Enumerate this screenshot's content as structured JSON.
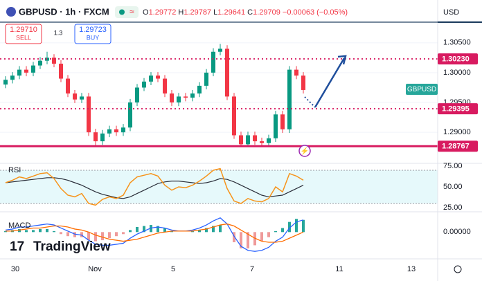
{
  "header": {
    "symbol": "GBPUSD · 1h · FXCM",
    "currency": "USD",
    "ohlc": [
      {
        "label": "O",
        "value": "1.29772"
      },
      {
        "label": "H",
        "value": "1.29787"
      },
      {
        "label": "L",
        "value": "1.29641"
      },
      {
        "label": "C",
        "value": "1.29709"
      }
    ],
    "change": "−0.00063 (−0.05%)",
    "sell": {
      "price": "1.29710",
      "label": "SELL"
    },
    "spread": "1.3",
    "buy": {
      "price": "1.29723",
      "label": "BUY"
    },
    "logo": "TradingView"
  },
  "chart_data": {
    "type": "candlestick",
    "symbol_tag": "GBPUSD",
    "up_color": "#089981",
    "down_color": "#f23645",
    "level_color": "#d81b60",
    "ylim": [
      1.2848,
      1.30846
    ],
    "yticks": [
      {
        "value": 1.305,
        "label": "1.30500"
      },
      {
        "value": 1.3,
        "label": "1.30000"
      },
      {
        "value": 1.295,
        "label": "1.29500"
      },
      {
        "value": 1.29,
        "label": "1.29000"
      }
    ],
    "levels": [
      {
        "value": 1.3023,
        "label": "1.30230",
        "style": "dotted"
      },
      {
        "value": 1.29395,
        "label": "1.29395",
        "style": "dotted"
      },
      {
        "value": 1.28767,
        "label": "1.28767",
        "style": "solid"
      }
    ],
    "x_labels": [
      "30",
      "Nov",
      "5",
      "7",
      "11",
      "13"
    ],
    "open": [
      1.298,
      1.2988,
      1.2995,
      1.3005,
      1.3,
      1.3012,
      1.302,
      1.3025,
      1.3015,
      1.299,
      1.2965,
      1.2955,
      1.296,
      1.29,
      1.2885,
      1.2898,
      1.2905,
      1.29,
      1.2908,
      1.295,
      1.2975,
      1.2985,
      1.2995,
      1.299,
      1.2965,
      1.295,
      1.296,
      1.2958,
      1.2965,
      1.2978,
      1.3,
      1.3035,
      1.304,
      1.296,
      1.2895,
      1.288,
      1.2895,
      1.2885,
      1.2882,
      1.289,
      1.293,
      1.2905,
      1.3005,
      1.2995
    ],
    "high": [
      1.2994,
      1.3001,
      1.3011,
      1.3011,
      1.3018,
      1.3026,
      1.3035,
      1.3031,
      1.3021,
      1.2996,
      1.2971,
      1.2966,
      1.2966,
      1.2906,
      1.2904,
      1.2911,
      1.2911,
      1.2914,
      1.2956,
      1.2981,
      1.2991,
      1.3001,
      1.3001,
      1.2996,
      1.2971,
      1.2966,
      1.2966,
      1.2971,
      1.2984,
      1.3006,
      1.3041,
      1.3048,
      1.3046,
      1.2966,
      1.2901,
      1.2901,
      1.2901,
      1.2891,
      1.2896,
      1.2936,
      1.2936,
      1.3011,
      1.3011,
      1.3001
    ],
    "low": [
      1.2974,
      1.2982,
      1.2989,
      1.2994,
      1.2994,
      1.3006,
      1.3014,
      1.3009,
      1.2984,
      1.2959,
      1.2949,
      1.2949,
      1.2894,
      1.2878,
      1.2879,
      1.2892,
      1.2894,
      1.2894,
      1.2902,
      1.2944,
      1.2969,
      1.2979,
      1.2984,
      1.2959,
      1.2944,
      1.2944,
      1.2952,
      1.2952,
      1.2959,
      1.2972,
      1.2994,
      1.3029,
      1.2954,
      1.2889,
      1.2876,
      1.2876,
      1.2879,
      1.2876,
      1.2876,
      1.2884,
      1.2899,
      1.2899,
      1.2989,
      1.2965
    ],
    "close": [
      1.2988,
      1.2995,
      1.3005,
      1.3,
      1.3012,
      1.302,
      1.3025,
      1.3015,
      1.299,
      1.2965,
      1.2955,
      1.296,
      1.29,
      1.2885,
      1.2898,
      1.2905,
      1.29,
      1.2908,
      1.295,
      1.2975,
      1.2985,
      1.2995,
      1.299,
      1.2965,
      1.295,
      1.296,
      1.2958,
      1.2965,
      1.2978,
      1.3,
      1.3035,
      1.304,
      1.296,
      1.2895,
      1.288,
      1.2895,
      1.2885,
      1.2882,
      1.289,
      1.293,
      1.2905,
      1.3005,
      1.2995,
      1.2971
    ],
    "rsi": {
      "label": "RSI",
      "ylim": [
        20,
        80
      ],
      "band": [
        30,
        70
      ],
      "yticks": [
        {
          "value": 75,
          "label": "75.00"
        },
        {
          "value": 50,
          "label": "50.00"
        },
        {
          "value": 25,
          "label": "25.00"
        }
      ],
      "values": [
        55,
        58,
        62,
        60,
        63,
        66,
        67,
        60,
        48,
        40,
        38,
        42,
        30,
        28,
        35,
        38,
        36,
        40,
        55,
        62,
        64,
        66,
        63,
        52,
        46,
        50,
        49,
        52,
        57,
        63,
        70,
        72,
        48,
        33,
        30,
        36,
        33,
        32,
        36,
        50,
        44,
        66,
        63,
        58
      ],
      "ma": [
        55,
        56,
        57,
        58,
        59,
        60,
        61,
        61,
        60,
        58,
        55,
        52,
        48,
        44,
        41,
        39,
        37,
        36,
        38,
        42,
        46,
        50,
        54,
        56,
        57,
        57,
        56,
        55,
        54,
        55,
        57,
        60,
        59,
        56,
        52,
        48,
        44,
        40,
        38,
        39,
        40,
        44,
        48,
        52
      ]
    },
    "macd": {
      "label": "MACD",
      "ylim": [
        -0.0025,
        0.002
      ],
      "yticks": [
        {
          "value": 0,
          "label": "0.00000"
        }
      ],
      "macd": [
        0.0002,
        0.0003,
        0.0005,
        0.0005,
        0.0006,
        0.0007,
        0.0008,
        0.0007,
        0.0004,
        0.0001,
        -0.0002,
        -0.0003,
        -0.0008,
        -0.0012,
        -0.0013,
        -0.0013,
        -0.0012,
        -0.0011,
        -0.0006,
        -0.0002,
        0.0001,
        0.0004,
        0.0005,
        0.0004,
        0.0002,
        0.0001,
        0.0001,
        0.0002,
        0.0004,
        0.0007,
        0.0011,
        0.0014,
        0.0008,
        -0.0004,
        -0.0014,
        -0.0018,
        -0.0019,
        -0.0018,
        -0.0015,
        -0.0009,
        -0.0005,
        0.0004,
        0.001,
        0.0012
      ],
      "signal": [
        0.0001,
        0.0001,
        0.0002,
        0.0003,
        0.0004,
        0.0004,
        0.0005,
        0.0006,
        0.0006,
        0.0005,
        0.0003,
        0.0002,
        0.0,
        -0.0003,
        -0.0005,
        -0.0007,
        -0.0008,
        -0.0009,
        -0.0008,
        -0.0007,
        -0.0005,
        -0.0003,
        -0.0001,
        0.0,
        0.0001,
        0.0001,
        0.0001,
        0.0001,
        0.0002,
        0.0003,
        0.0005,
        0.0007,
        0.0008,
        0.0006,
        0.0002,
        -0.0002,
        -0.0006,
        -0.0009,
        -0.001,
        -0.001,
        -0.0009,
        -0.0006,
        -0.0003,
        0.0
      ],
      "histogram": [
        0.0001,
        0.0002,
        0.0003,
        0.0002,
        0.0002,
        0.0003,
        0.0003,
        0.0001,
        -0.0002,
        -0.0004,
        -0.0005,
        -0.0005,
        -0.0008,
        -0.0009,
        -0.0008,
        -0.0006,
        -0.0004,
        -0.0002,
        0.0002,
        0.0005,
        0.0006,
        0.0007,
        0.0006,
        0.0004,
        0.0001,
        0,
        0,
        0.0001,
        0.0002,
        0.0004,
        0.0006,
        0.0007,
        0,
        -0.001,
        -0.0016,
        -0.0016,
        -0.0013,
        -0.0009,
        -0.0005,
        0.0001,
        0.0004,
        0.001,
        0.0013,
        0.0012
      ]
    }
  }
}
